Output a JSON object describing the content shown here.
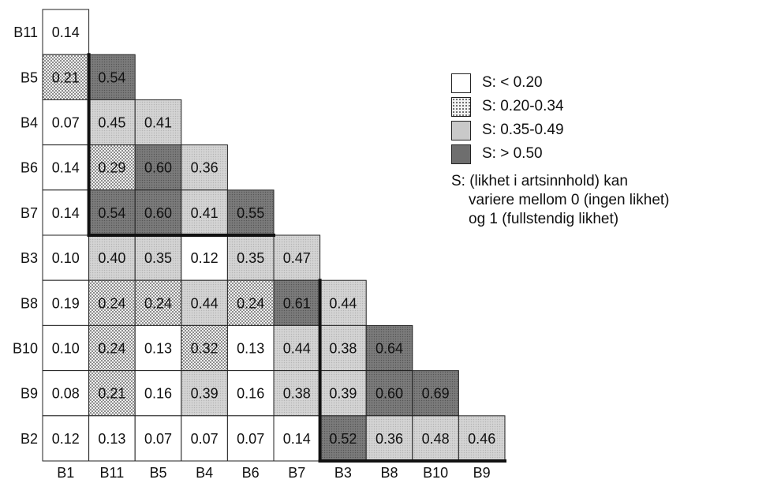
{
  "chart_data": {
    "type": "heatmap",
    "row_labels": [
      "B11",
      "B5",
      "B4",
      "B6",
      "B7",
      "B3",
      "B8",
      "B10",
      "B9",
      "B2"
    ],
    "col_labels": [
      "B1",
      "B11",
      "B5",
      "B4",
      "B6",
      "B7",
      "B3",
      "B8",
      "B10",
      "B9"
    ],
    "values": [
      [
        "0.14"
      ],
      [
        "0.21",
        "0.54"
      ],
      [
        "0.07",
        "0.45",
        "0.41"
      ],
      [
        "0.14",
        "0.29",
        "0.60",
        "0.36"
      ],
      [
        "0.14",
        "0.54",
        "0.60",
        "0.41",
        "0.55"
      ],
      [
        "0.10",
        "0.40",
        "0.35",
        "0.12",
        "0.35",
        "0.47"
      ],
      [
        "0.19",
        "0.24",
        "0.24",
        "0.44",
        "0.24",
        "0.61",
        "0.44"
      ],
      [
        "0.10",
        "0.24",
        "0.13",
        "0.32",
        "0.13",
        "0.44",
        "0.38",
        "0.64"
      ],
      [
        "0.08",
        "0.21",
        "0.16",
        "0.39",
        "0.16",
        "0.38",
        "0.39",
        "0.60",
        "0.69"
      ],
      [
        "0.12",
        "0.13",
        "0.07",
        "0.07",
        "0.07",
        "0.14",
        "0.52",
        "0.36",
        "0.48",
        "0.46"
      ]
    ],
    "legend": {
      "items": [
        {
          "label": "S: < 0.20",
          "pattern": "blank",
          "min": 0,
          "max": 0.2
        },
        {
          "label": "S: 0.20-0.34",
          "pattern": "dense-dots",
          "min": 0.2,
          "max": 0.35
        },
        {
          "label": "S: 0.35-0.49",
          "pattern": "light-gray",
          "min": 0.35,
          "max": 0.5
        },
        {
          "label": "S: > 0.50",
          "pattern": "dark-gray",
          "min": 0.5,
          "max": 1.01
        }
      ],
      "note_line1": "S: (likhet i artsinnhold) kan",
      "note_line2": "variere mellom 0 (ingen likhet)",
      "note_line3": "og 1 (fullstendig likhet)",
      "placement": "top-right"
    },
    "colors": {
      "dots_bg": "#f2f2f2",
      "dots_fg": "#444444",
      "light_gray": "#c9c9c9",
      "dark_gray": "#6e6e6e",
      "line": "#111111"
    }
  }
}
